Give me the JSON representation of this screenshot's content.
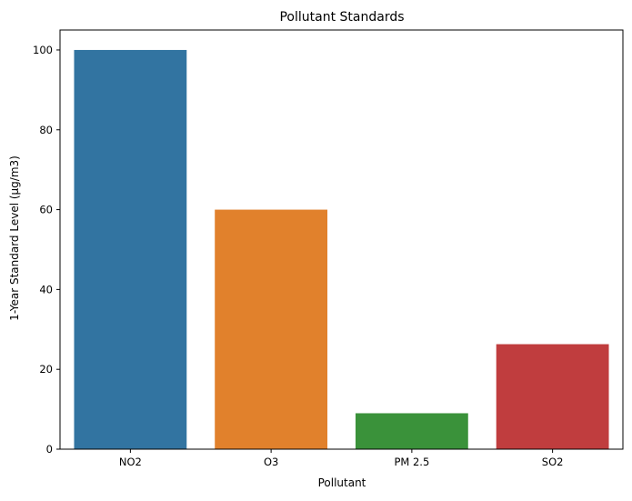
{
  "chart_data": {
    "type": "bar",
    "title": "Pollutant Standards",
    "xlabel": "Pollutant",
    "ylabel": "1-Year Standard Level (µg/m3)",
    "categories": [
      "NO2",
      "O3",
      "PM 2.5",
      "SO2"
    ],
    "values": [
      100,
      60,
      9,
      26.3
    ],
    "colors": [
      "#3274a1",
      "#e1812c",
      "#3a923a",
      "#c03d3e"
    ],
    "ylim": [
      0,
      105
    ],
    "yticks": [
      0,
      20,
      40,
      60,
      80,
      100
    ],
    "grid": false,
    "legend": "none"
  }
}
